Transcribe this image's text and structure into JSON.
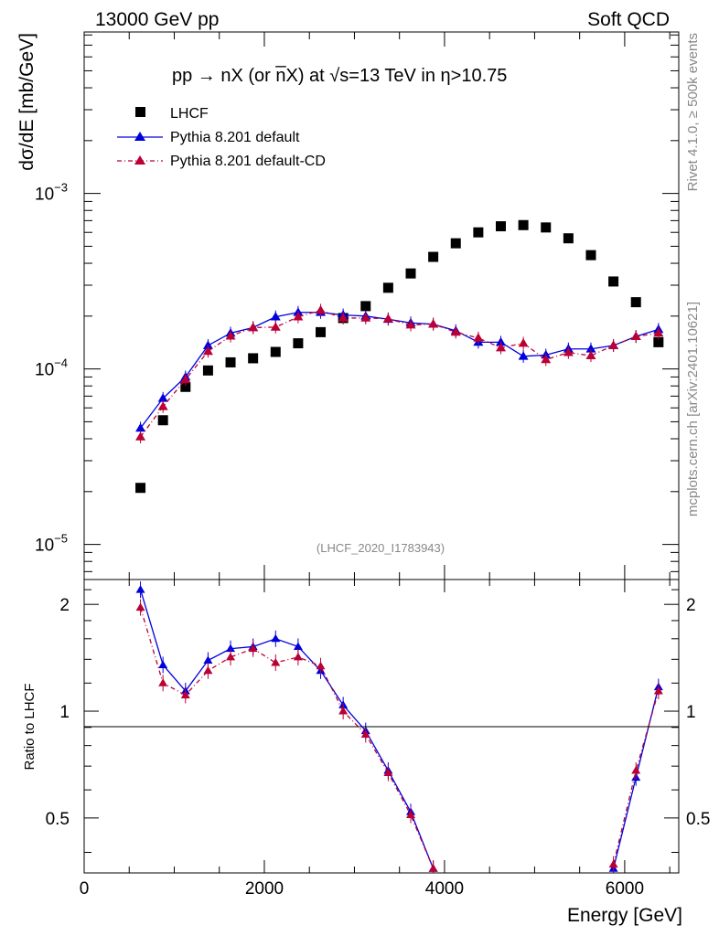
{
  "header": {
    "left": "13000 GeV pp",
    "right": "Soft QCD"
  },
  "side_labels": {
    "rivet": "Rivet 4.1.0, ≥ 500k events",
    "mcplots": "mcplots.cern.ch [arXiv:2401.10621]"
  },
  "analysis_tag": "(LHCF_2020_I1783943)",
  "chart_data": {
    "type": "scatter",
    "title_parts": {
      "process": "pp → nX (or n̅X) at ",
      "sqrt": "√",
      "s_var": "s",
      "energy": "=13 TeV in ",
      "eta": "η",
      "cut": ">10.75"
    },
    "xlabel": "Energy [GeV]",
    "ylabel": "dσ/dE [mb/GeV]",
    "ratio_ylabel": "Ratio to LHCF",
    "xlim": [
      0,
      6600
    ],
    "ylim_log10": [
      -5.2,
      -2.08
    ],
    "ratio_ylim": [
      0.35,
      2.35
    ],
    "x_ticks": [
      "0",
      "2000",
      "4000",
      "6000"
    ],
    "y_ticks_main": [
      {
        "base": "10",
        "exp": "−3",
        "value": 0.001
      },
      {
        "base": "10",
        "exp": "−4",
        "value": 0.0001
      },
      {
        "base": "10",
        "exp": "−5",
        "value": 1e-05
      }
    ],
    "ratio_ticks": [
      "0.5",
      "1",
      "2"
    ],
    "legend": [
      "LHCF",
      "Pythia 8.201 default",
      "Pythia 8.201 default-CD"
    ],
    "series": [
      {
        "name": "LHCF",
        "color": "#000000",
        "x": [
          625,
          875,
          1125,
          1375,
          1625,
          1875,
          2125,
          2375,
          2625,
          2875,
          3125,
          3375,
          3625,
          3875,
          4125,
          4375,
          4625,
          4875,
          5125,
          5375,
          5625,
          5875,
          6125,
          6375
        ],
        "y": [
          2.1e-05,
          5.1e-05,
          7.9e-05,
          9.8e-05,
          0.000109,
          0.000115,
          0.000125,
          0.00014,
          0.000162,
          0.000195,
          0.000228,
          0.00029,
          0.00035,
          0.000435,
          0.00052,
          0.0006,
          0.00065,
          0.00066,
          0.00064,
          0.000555,
          0.000445,
          0.000315,
          0.00024,
          0.000142
        ]
      },
      {
        "name": "Pythia 8.201 default",
        "color": "#0000dd",
        "x": [
          625,
          875,
          1125,
          1375,
          1625,
          1875,
          2125,
          2375,
          2625,
          2875,
          3125,
          3375,
          3625,
          3875,
          4125,
          4375,
          4625,
          4875,
          5125,
          5375,
          5625,
          5875,
          6125,
          6375
        ],
        "y": [
          4.6e-05,
          6.8e-05,
          9e-05,
          0.000136,
          0.00016,
          0.000172,
          0.000198,
          0.00021,
          0.00021,
          0.000203,
          0.0002,
          0.000192,
          0.000183,
          0.00018,
          0.000165,
          0.000142,
          0.000142,
          0.000118,
          0.00012,
          0.00013,
          0.00013,
          0.000136,
          0.000153,
          0.000168
        ],
        "ratio": [
          2.2,
          1.35,
          1.14,
          1.39,
          1.5,
          1.52,
          1.6,
          1.52,
          1.3,
          1.04,
          0.88,
          0.68,
          0.52,
          0.36,
          null,
          null,
          null,
          null,
          null,
          null,
          null,
          0.36,
          0.65,
          1.17
        ]
      },
      {
        "name": "Pythia 8.201 default-CD",
        "color": "#bb0033",
        "x": [
          625,
          875,
          1125,
          1375,
          1625,
          1875,
          2125,
          2375,
          2625,
          2875,
          3125,
          3375,
          3625,
          3875,
          4125,
          4375,
          4625,
          4875,
          5125,
          5375,
          5625,
          5875,
          6125,
          6375
        ],
        "y": [
          4.1e-05,
          6.1e-05,
          8.7e-05,
          0.000126,
          0.000154,
          0.000172,
          0.000173,
          0.000198,
          0.000216,
          0.000195,
          0.000195,
          0.000193,
          0.000178,
          0.00018,
          0.000162,
          0.00015,
          0.000132,
          0.00014,
          0.000113,
          0.000124,
          0.000119,
          0.000136,
          0.000153,
          0.00016
        ],
        "ratio": [
          1.96,
          1.2,
          1.11,
          1.3,
          1.42,
          1.5,
          1.37,
          1.42,
          1.34,
          1.0,
          0.86,
          0.67,
          0.51,
          0.36,
          null,
          null,
          null,
          null,
          null,
          null,
          null,
          0.37,
          0.68,
          1.14
        ]
      }
    ]
  }
}
